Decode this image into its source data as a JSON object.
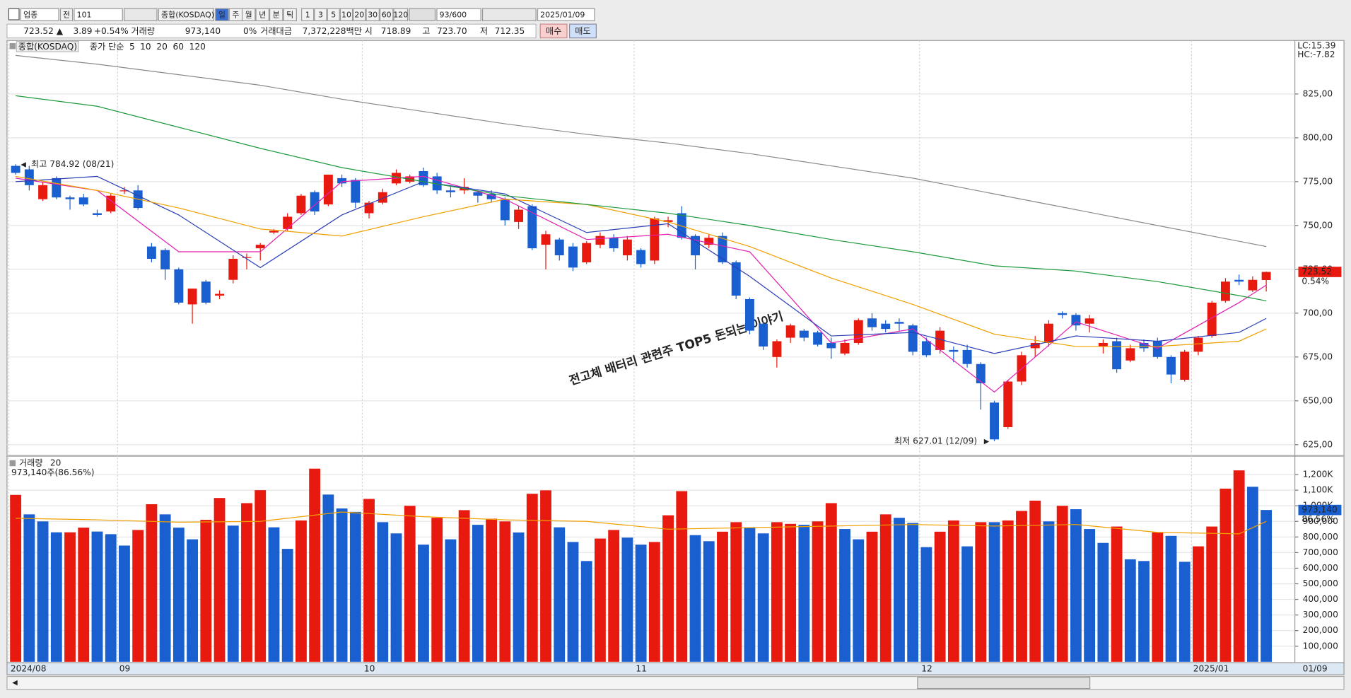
{
  "toolbar": [
    "업종",
    "전",
    "101",
    "종합(KOSDAQ)",
    "일",
    "주",
    "월",
    "년",
    "분",
    "틱",
    "1",
    "3",
    "5",
    "10",
    "20",
    "30",
    "60",
    "120",
    "93/600",
    "2025/01/09"
  ],
  "quote": {
    "price": "723.52 ▲",
    "change": "3.89",
    "change_pct": "+0.54%",
    "volume_label": "거래량",
    "volume": "973,140",
    "volume_ratio": "0%",
    "value_label": "거래대금",
    "value": "7,372,228백만",
    "open_label": "시",
    "open": "718.89",
    "high_label": "고",
    "high": "723.70",
    "low_label": "저",
    "low": "712.35",
    "buy": "매수",
    "sell": "매도"
  },
  "chart_data": [
    {
      "type": "candlestick",
      "title": "종합(KOSDAQ)",
      "ma_label": "종가 단순",
      "lc_label": "LC:15.39",
      "hc_label": "HC:-7.82",
      "change_label": "0.54%",
      "watermark": "전고체 배터리 관련주 TOP5 돈되는 이야기",
      "up_color": "#e8190e",
      "down_color": "#1a5fd0",
      "grid": true,
      "categories": [
        "2024/08",
        null,
        null,
        null,
        null,
        null,
        null,
        null,
        "09",
        null,
        null,
        null,
        null,
        null,
        null,
        null,
        null,
        null,
        null,
        null,
        null,
        null,
        null,
        null,
        null,
        null,
        "10",
        null,
        null,
        null,
        null,
        null,
        null,
        null,
        null,
        null,
        null,
        null,
        null,
        null,
        null,
        null,
        null,
        null,
        null,
        null,
        "11",
        null,
        null,
        null,
        null,
        null,
        null,
        null,
        null,
        null,
        null,
        null,
        null,
        null,
        null,
        null,
        null,
        null,
        null,
        null,
        null,
        "12",
        null,
        null,
        null,
        null,
        null,
        null,
        null,
        null,
        null,
        null,
        null,
        null,
        null,
        null,
        null,
        null,
        null,
        null,
        null,
        "2025/01",
        null,
        null,
        null,
        null,
        null
      ],
      "last_date_label": "01/09",
      "open": [
        784,
        782,
        765,
        777,
        766,
        766,
        757,
        758,
        770,
        770,
        738,
        736,
        725,
        705,
        718,
        710,
        719,
        732,
        737,
        746,
        748,
        757,
        769,
        762,
        777,
        776,
        757,
        763,
        774,
        775,
        781,
        778,
        770,
        770,
        769,
        768,
        765,
        752,
        761,
        739,
        742,
        738,
        729,
        739,
        743,
        733,
        736,
        730,
        752,
        757,
        744,
        739,
        744,
        729,
        708,
        694,
        675,
        686,
        690,
        689,
        683,
        677,
        683,
        697,
        694,
        695,
        693,
        684,
        679,
        679,
        679,
        671,
        649,
        635,
        661,
        680,
        683,
        700,
        699,
        694,
        681,
        684,
        673,
        683,
        684,
        675,
        662,
        678,
        687,
        707,
        719,
        713,
        718.89
      ],
      "high": [
        784.92,
        784,
        775,
        778,
        767,
        768,
        759,
        768,
        772,
        773,
        740,
        737,
        726,
        714,
        719,
        713,
        733,
        734,
        740,
        748,
        757,
        768,
        770,
        779,
        779,
        777,
        764,
        771,
        782,
        779,
        783,
        780,
        772,
        777,
        770,
        770,
        766,
        761,
        762,
        747,
        743,
        740,
        741,
        746,
        745,
        744,
        737,
        755,
        755,
        761,
        745,
        745,
        746,
        730,
        709,
        695,
        685,
        694,
        691,
        690,
        686,
        685,
        697,
        700,
        696,
        697,
        694,
        686,
        692,
        681,
        682,
        672,
        650,
        662,
        678,
        687,
        696,
        701,
        700,
        699,
        685,
        686,
        682,
        685,
        686,
        676,
        679,
        687,
        707,
        720,
        722,
        721,
        723.7
      ],
      "low": [
        779,
        770,
        764,
        765,
        759,
        761,
        755,
        757,
        768,
        759,
        729,
        719,
        705,
        694,
        705,
        708,
        717,
        725,
        730,
        745,
        747,
        756,
        756,
        761,
        772,
        760,
        754,
        762,
        773,
        774,
        772,
        768,
        766,
        768,
        763,
        763,
        750,
        748,
        736,
        725,
        730,
        724,
        728,
        737,
        735,
        730,
        726,
        728,
        749,
        742,
        725,
        737,
        728,
        708,
        688,
        679,
        669,
        683,
        684,
        681,
        674,
        676,
        682,
        690,
        689,
        690,
        676,
        675,
        677,
        672,
        669,
        645,
        627.01,
        634,
        659,
        675,
        681,
        697,
        690,
        689,
        677,
        666,
        672,
        678,
        674,
        660,
        661,
        676,
        686,
        706,
        716,
        712,
        712.35
      ],
      "close": [
        780,
        773,
        773,
        766,
        765,
        762,
        756,
        767,
        770,
        760,
        731,
        725,
        706,
        714,
        706,
        711,
        731,
        732,
        739,
        747,
        755,
        767,
        758,
        779,
        774,
        763,
        763,
        769,
        780,
        778,
        773,
        770,
        769,
        772,
        767,
        765,
        753,
        759,
        737,
        745,
        733,
        726,
        740,
        744,
        737,
        742,
        728,
        754,
        753,
        743,
        733,
        743,
        729,
        710,
        690,
        681,
        684,
        693,
        686,
        682,
        680,
        683,
        696,
        692,
        691,
        694,
        678,
        676,
        690,
        678,
        671,
        660,
        628,
        661,
        676,
        683,
        694,
        699,
        693,
        697,
        683,
        668,
        680,
        680,
        675,
        665,
        678,
        686,
        706,
        718,
        718,
        719,
        723.52
      ],
      "high_annotation": {
        "text": "최고 784.92 (08/21)",
        "value": 784.92
      },
      "low_annotation": {
        "text": "최저 627.01 (12/09)",
        "value": 627.01
      },
      "series": [
        {
          "name": "5",
          "color": "#e020b0",
          "x": [
            0,
            6,
            12,
            18,
            24,
            30,
            36,
            42,
            48,
            54,
            60,
            66,
            72,
            78,
            84,
            90,
            92
          ],
          "values": [
            777,
            770,
            735,
            735,
            775,
            778,
            765,
            742,
            745,
            735,
            683,
            691,
            655,
            695,
            680,
            706,
            716
          ]
        },
        {
          "name": "10",
          "color": "#2a3fb8",
          "x": [
            0,
            6,
            12,
            18,
            24,
            30,
            36,
            42,
            48,
            54,
            60,
            66,
            72,
            78,
            84,
            90,
            92
          ],
          "values": [
            775,
            778,
            756,
            726,
            756,
            775,
            768,
            746,
            751,
            721,
            687,
            689,
            677,
            687,
            684,
            689,
            697
          ]
        },
        {
          "name": "20",
          "color": "#f0a000",
          "x": [
            0,
            6,
            12,
            18,
            24,
            30,
            36,
            42,
            48,
            54,
            60,
            66,
            72,
            78,
            84,
            90,
            92
          ],
          "values": [
            778,
            770,
            760,
            748,
            744,
            755,
            765,
            762,
            752,
            738,
            720,
            705,
            688,
            681,
            681,
            684,
            691
          ]
        },
        {
          "name": "60",
          "color": "#1e9a3c",
          "x": [
            0,
            6,
            12,
            18,
            24,
            30,
            36,
            42,
            48,
            54,
            60,
            66,
            72,
            78,
            84,
            90,
            92
          ],
          "values": [
            824,
            818,
            806,
            794,
            783,
            775,
            767,
            762,
            757,
            750,
            742,
            735,
            727,
            724,
            718,
            710,
            707
          ]
        },
        {
          "name": "120",
          "color": "#8a8a8a",
          "x": [
            0,
            6,
            12,
            18,
            24,
            30,
            36,
            42,
            48,
            54,
            60,
            66,
            72,
            78,
            84,
            90,
            92
          ],
          "values": [
            847,
            842,
            836,
            830,
            822,
            815,
            808,
            802,
            797,
            791,
            784,
            777,
            768,
            759,
            750,
            741,
            738
          ]
        }
      ],
      "ylim": [
        619.6,
        855.5
      ],
      "yticks": [
        {
          "value": 625,
          "label": "625,00"
        },
        {
          "value": 650,
          "label": "650,00"
        },
        {
          "value": 675,
          "label": "675,00"
        },
        {
          "value": 700,
          "label": "700,00"
        },
        {
          "value": 725,
          "label": "725,00"
        },
        {
          "value": 750,
          "label": "750,00"
        },
        {
          "value": 775,
          "label": "775,00"
        },
        {
          "value": 800,
          "label": "800,00"
        },
        {
          "value": 825,
          "label": "825,00"
        }
      ]
    },
    {
      "type": "bar",
      "title": "거래량",
      "summary": "973,140주(86.56%)",
      "current_label": "973,140",
      "current_pct": "86.56%",
      "grid": true,
      "values": [
        1070000,
        945000,
        900000,
        830000,
        830000,
        860000,
        835000,
        818000,
        745000,
        845000,
        1010000,
        945000,
        860000,
        785000,
        910000,
        1050000,
        873000,
        1017000,
        1100000,
        862000,
        724000,
        906000,
        1238000,
        1072000,
        983000,
        961000,
        1044000,
        895000,
        823000,
        1000000,
        751000,
        923000,
        785000,
        972000,
        878000,
        917000,
        900000,
        829000,
        1077000,
        1099000,
        862000,
        768000,
        646000,
        790000,
        845000,
        796000,
        751000,
        768000,
        939000,
        1094000,
        812000,
        773000,
        834000,
        895000,
        862000,
        823000,
        895000,
        884000,
        878000,
        900000,
        1017000,
        851000,
        785000,
        834000,
        945000,
        923000,
        890000,
        735000,
        834000,
        906000,
        740000,
        895000,
        895000,
        906000,
        967000,
        1033000,
        900000,
        1000000,
        978000,
        851000,
        762000,
        867000,
        657000,
        646000,
        829000,
        807000,
        641000,
        740000,
        867000,
        1110000,
        1227000,
        1122000,
        973140
      ],
      "colors": [
        "#e8190e",
        "#1a5fd0",
        "#1a5fd0",
        "#1a5fd0",
        "#e8190e",
        "#e8190e",
        "#1a5fd0",
        "#1a5fd0",
        "#1a5fd0",
        "#e8190e",
        "#e8190e",
        "#1a5fd0",
        "#1a5fd0",
        "#1a5fd0",
        "#e8190e",
        "#e8190e",
        "#1a5fd0",
        "#e8190e",
        "#e8190e",
        "#1a5fd0",
        "#1a5fd0",
        "#e8190e",
        "#e8190e",
        "#1a5fd0",
        "#1a5fd0",
        "#1a5fd0",
        "#e8190e",
        "#1a5fd0",
        "#1a5fd0",
        "#e8190e",
        "#1a5fd0",
        "#e8190e",
        "#1a5fd0",
        "#e8190e",
        "#1a5fd0",
        "#e8190e",
        "#e8190e",
        "#1a5fd0",
        "#e8190e",
        "#e8190e",
        "#1a5fd0",
        "#1a5fd0",
        "#1a5fd0",
        "#e8190e",
        "#e8190e",
        "#1a5fd0",
        "#1a5fd0",
        "#e8190e",
        "#e8190e",
        "#e8190e",
        "#1a5fd0",
        "#1a5fd0",
        "#e8190e",
        "#e8190e",
        "#1a5fd0",
        "#1a5fd0",
        "#e8190e",
        "#e8190e",
        "#1a5fd0",
        "#e8190e",
        "#e8190e",
        "#1a5fd0",
        "#1a5fd0",
        "#e8190e",
        "#e8190e",
        "#1a5fd0",
        "#1a5fd0",
        "#1a5fd0",
        "#e8190e",
        "#e8190e",
        "#1a5fd0",
        "#e8190e",
        "#1a5fd0",
        "#e8190e",
        "#e8190e",
        "#e8190e",
        "#1a5fd0",
        "#e8190e",
        "#1a5fd0",
        "#1a5fd0",
        "#1a5fd0",
        "#e8190e",
        "#1a5fd0",
        "#1a5fd0",
        "#e8190e",
        "#1a5fd0",
        "#1a5fd0",
        "#e8190e",
        "#e8190e",
        "#e8190e",
        "#e8190e",
        "#1a5fd0",
        "#1a5fd0"
      ],
      "series": [
        {
          "name": "20",
          "color": "#f0a000",
          "x": [
            0,
            6,
            12,
            18,
            24,
            30,
            36,
            42,
            48,
            54,
            60,
            66,
            72,
            78,
            84,
            90,
            92
          ],
          "values": [
            920000,
            910000,
            895000,
            900000,
            960000,
            930000,
            910000,
            900000,
            850000,
            860000,
            870000,
            880000,
            870000,
            880000,
            830000,
            820000,
            900000
          ]
        }
      ],
      "ylim": [
        0,
        1309000
      ],
      "yticks": [
        {
          "value": 100000,
          "label": "100,000"
        },
        {
          "value": 200000,
          "label": "200,000"
        },
        {
          "value": 300000,
          "label": "300,000"
        },
        {
          "value": 400000,
          "label": "400,000"
        },
        {
          "value": 500000,
          "label": "500,000"
        },
        {
          "value": 600000,
          "label": "600,000"
        },
        {
          "value": 700000,
          "label": "700,000"
        },
        {
          "value": 800000,
          "label": "800,000"
        },
        {
          "value": 900000,
          "label": "900,000"
        },
        {
          "value": 1000000,
          "label": "1,000K"
        },
        {
          "value": 1100000,
          "label": "1,100K"
        },
        {
          "value": 1200000,
          "label": "1,200K"
        }
      ]
    }
  ]
}
